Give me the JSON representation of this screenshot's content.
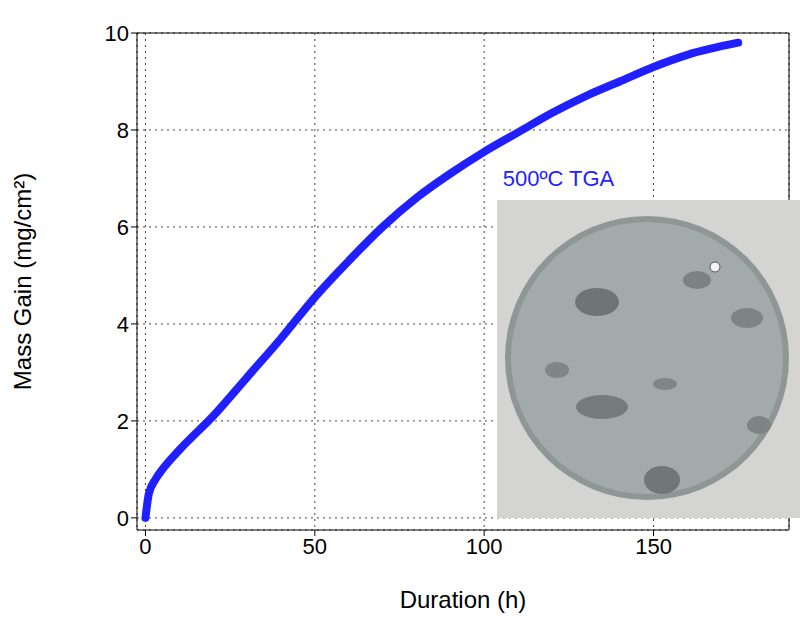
{
  "chart_data": {
    "type": "line",
    "x_label": "Duration (h)",
    "y_label": "Mass Gain (mg/cm²)",
    "x": [
      0,
      1,
      3,
      5,
      10,
      20,
      30,
      40,
      50,
      60,
      70,
      80,
      90,
      100,
      110,
      120,
      130,
      140,
      150,
      160,
      175
    ],
    "values": [
      0,
      0.5,
      0.8,
      1.0,
      1.4,
      2.1,
      2.9,
      3.7,
      4.55,
      5.3,
      6.0,
      6.6,
      7.1,
      7.55,
      7.95,
      8.35,
      8.7,
      9.0,
      9.3,
      9.55,
      9.8
    ],
    "color": "#1f1fff",
    "line_style": "solid",
    "xlim": [
      -2.5,
      190
    ],
    "xticks": [
      0,
      50,
      100,
      150
    ],
    "ylim": [
      -0.25,
      10
    ],
    "yticks": [
      0,
      2,
      4,
      6,
      8,
      10
    ],
    "grid": true,
    "annotations": [
      {
        "text": "500ºC TGA",
        "x": 104,
        "y": 7
      }
    ]
  }
}
